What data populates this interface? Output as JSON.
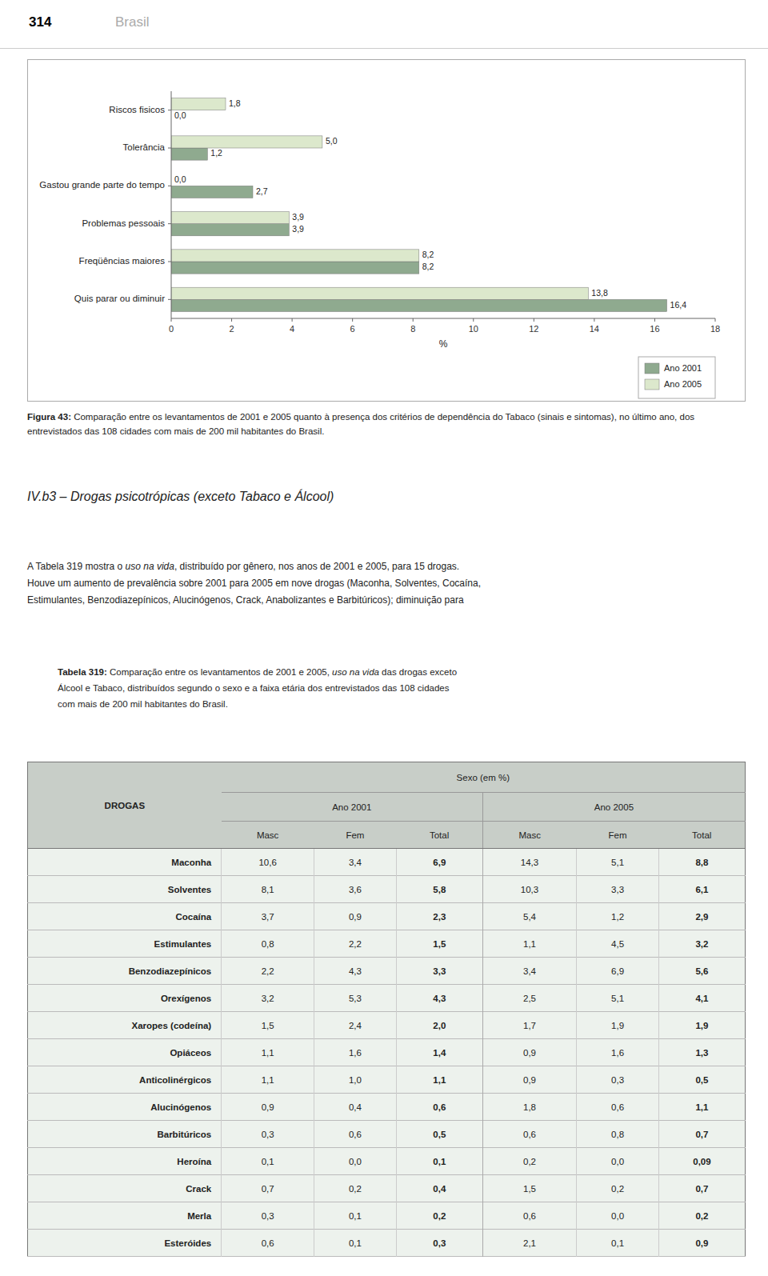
{
  "page": {
    "page_number": "314",
    "page_title": "Brasil"
  },
  "chart_data": {
    "type": "bar",
    "orientation": "horizontal",
    "categories": [
      "Riscos fisicos",
      "Tolerância",
      "Gastou grande parte do tempo",
      "Problemas pessoais",
      "Freqüências maiores",
      "Quis parar ou diminuir"
    ],
    "series": [
      {
        "name": "Ano 2001",
        "color": "#8faa8f",
        "values": [
          0.0,
          1.2,
          2.7,
          3.9,
          8.2,
          16.4
        ],
        "value_labels": [
          "0,0",
          "1,2",
          "2,7",
          "3,9",
          "8,2",
          "16,4"
        ]
      },
      {
        "name": "Ano 2005",
        "color": "#dce8cc",
        "values": [
          1.8,
          5.0,
          0.0,
          3.9,
          8.2,
          13.8
        ],
        "value_labels": [
          "1,8",
          "5,0",
          "0,0",
          "3,9",
          "8,2",
          "13,8"
        ]
      }
    ],
    "xlabel": "%",
    "xlim": [
      0,
      18
    ],
    "xticks": [
      0,
      2,
      4,
      6,
      8,
      10,
      12,
      14,
      16,
      18
    ],
    "data_labels": true,
    "legend": "lower right",
    "grid": false
  },
  "figure_caption": {
    "bold": "Figura 43:",
    "rest": " Comparação entre os levantamentos de 2001 e 2005 quanto à presença dos critérios de dependência do Tabaco (sinais e sintomas), no último ano, dos entrevistados das 108 cidades com mais de 200 mil habitantes do Brasil."
  },
  "section_title": "IV.b3 – Drogas psicotrópicas (exceto Tabaco e Álcool)",
  "body_text": {
    "line1_pre": "A Tabela 319 mostra o ",
    "line1_italic": "uso na vida",
    "line1_post": ", distribuído por gênero, nos anos de 2001 e 2005, para 15 drogas.",
    "line2": "Houve um aumento de prevalência sobre 2001 para 2005 em nove drogas (Maconha, Solventes, Cocaína,",
    "line3": "Estimulantes, Benzodiazepínicos, Alucinógenos, Crack, Anabolizantes e Barbitúricos); diminuição para"
  },
  "table_caption": {
    "bold": "Tabela 319:",
    "line1_pre": " Comparação entre os levantamentos de 2001 e 2005,",
    "line1_italic": " uso na vida",
    "line1_post": " das drogas exceto",
    "line2": "Álcool e Tabaco, distribuídos segundo o sexo e a faixa etária dos entrevistados das 108 cidades",
    "line3": "com mais de 200 mil habitantes do Brasil."
  },
  "table": {
    "corner": "DROGAS",
    "group_title": "Sexo (em %)",
    "groups": [
      "Ano 2001",
      "Ano 2005"
    ],
    "columns": [
      "Masc",
      "Fem",
      "Total"
    ],
    "header_bg": "#c8cec8",
    "row_bg": "#edf2ed",
    "drogas": [
      "Maconha",
      "Solventes",
      "Cocaína",
      "Estimulantes",
      "Benzodiazepínicos",
      "Orexígenos",
      "Xaropes (codeína)",
      "Opiáceos",
      "Anticolinérgicos",
      "Alucinógenos",
      "Barbitúricos",
      "Heroína",
      "Crack",
      "Merla",
      "Esteróides"
    ],
    "data": [
      [
        "10,6",
        "3,4",
        "6,9",
        "14,3",
        "5,1",
        "8,8"
      ],
      [
        "8,1",
        "3,6",
        "5,8",
        "10,3",
        "3,3",
        "6,1"
      ],
      [
        "3,7",
        "0,9",
        "2,3",
        "5,4",
        "1,2",
        "2,9"
      ],
      [
        "0,8",
        "2,2",
        "1,5",
        "1,1",
        "4,5",
        "3,2"
      ],
      [
        "2,2",
        "4,3",
        "3,3",
        "3,4",
        "6,9",
        "5,6"
      ],
      [
        "3,2",
        "5,3",
        "4,3",
        "2,5",
        "5,1",
        "4,1"
      ],
      [
        "1,5",
        "2,4",
        "2,0",
        "1,7",
        "1,9",
        "1,9"
      ],
      [
        "1,1",
        "1,6",
        "1,4",
        "0,9",
        "1,6",
        "1,3"
      ],
      [
        "1,1",
        "1,0",
        "1,1",
        "0,9",
        "0,3",
        "0,5"
      ],
      [
        "0,9",
        "0,4",
        "0,6",
        "1,8",
        "0,6",
        "1,1"
      ],
      [
        "0,3",
        "0,6",
        "0,5",
        "0,6",
        "0,8",
        "0,7"
      ],
      [
        "0,1",
        "0,0",
        "0,1",
        "0,2",
        "0,0",
        "0,09"
      ],
      [
        "0,7",
        "0,2",
        "0,4",
        "1,5",
        "0,2",
        "0,7"
      ],
      [
        "0,3",
        "0,1",
        "0,2",
        "0,6",
        "0,0",
        "0,2"
      ],
      [
        "0,6",
        "0,1",
        "0,3",
        "2,1",
        "0,1",
        "0,9"
      ]
    ]
  }
}
